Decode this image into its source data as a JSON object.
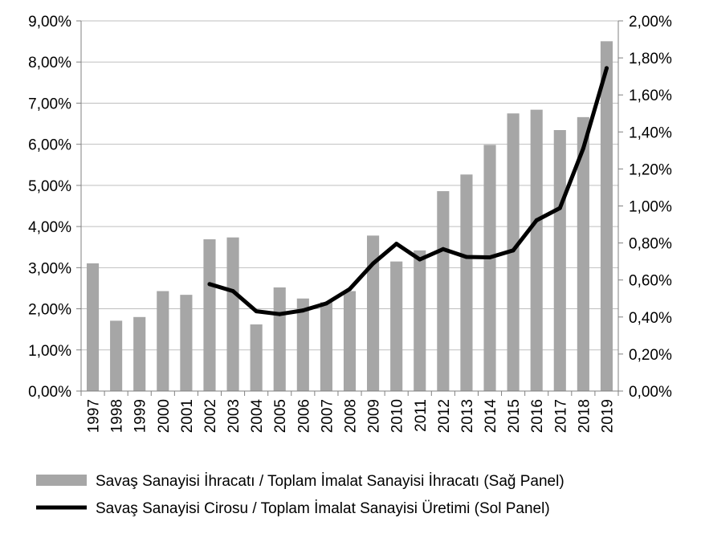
{
  "chart_data": {
    "type": "bar+line",
    "categories": [
      "1997",
      "1998",
      "1999",
      "2000",
      "2001",
      "2002",
      "2003",
      "2004",
      "2005",
      "2006",
      "2007",
      "2008",
      "2009",
      "2010",
      "2011",
      "2012",
      "2013",
      "2014",
      "2015",
      "2016",
      "2017",
      "2018",
      "2019"
    ],
    "series": [
      {
        "name": "Savaş Sanayisi İhracatı / Toplam İmalat Sanayisi İhracatı (Sağ Panel)",
        "type": "bar",
        "axis": "right",
        "color": "#a6a6a6",
        "values": [
          0.69,
          0.38,
          0.4,
          0.54,
          0.52,
          0.82,
          0.83,
          0.36,
          0.56,
          0.5,
          0.48,
          0.54,
          0.84,
          0.7,
          0.76,
          1.08,
          1.17,
          1.33,
          1.5,
          1.52,
          1.41,
          1.48,
          1.89
        ]
      },
      {
        "name": "Savaş Sanayisi Cirosu / Toplam İmalat Sanayisi Üretimi (Sol Panel)",
        "type": "line",
        "axis": "left",
        "color": "#000000",
        "values": [
          null,
          null,
          null,
          null,
          null,
          2.6,
          2.43,
          1.94,
          1.87,
          1.96,
          2.13,
          2.48,
          3.1,
          3.58,
          3.2,
          3.45,
          3.26,
          3.25,
          3.42,
          4.15,
          4.45,
          5.9,
          7.85
        ]
      }
    ],
    "left_axis": {
      "ylim": [
        0,
        9
      ],
      "ticks": [
        0,
        1,
        2,
        3,
        4,
        5,
        6,
        7,
        8,
        9
      ],
      "tick_labels": [
        "0,00%",
        "1,00%",
        "2,00%",
        "3,00%",
        "4,00%",
        "5,00%",
        "6,00%",
        "7,00%",
        "8,00%",
        "9,00%"
      ]
    },
    "right_axis": {
      "ylim": [
        0,
        2
      ],
      "ticks": [
        0,
        0.2,
        0.4,
        0.6,
        0.8,
        1.0,
        1.2,
        1.4,
        1.6,
        1.8,
        2.0
      ],
      "tick_labels": [
        "0,00%",
        "0,20%",
        "0,40%",
        "0,60%",
        "0,80%",
        "1,00%",
        "1,20%",
        "1,40%",
        "1,60%",
        "1,80%",
        "2,00%"
      ]
    },
    "grid": true,
    "legend_position": "bottom"
  },
  "legend": {
    "bar_label": "Savaş Sanayisi İhracatı / Toplam İmalat Sanayisi İhracatı (Sağ Panel)",
    "line_label": "Savaş Sanayisi Cirosu / Toplam İmalat Sanayisi Üretimi (Sol Panel)"
  }
}
